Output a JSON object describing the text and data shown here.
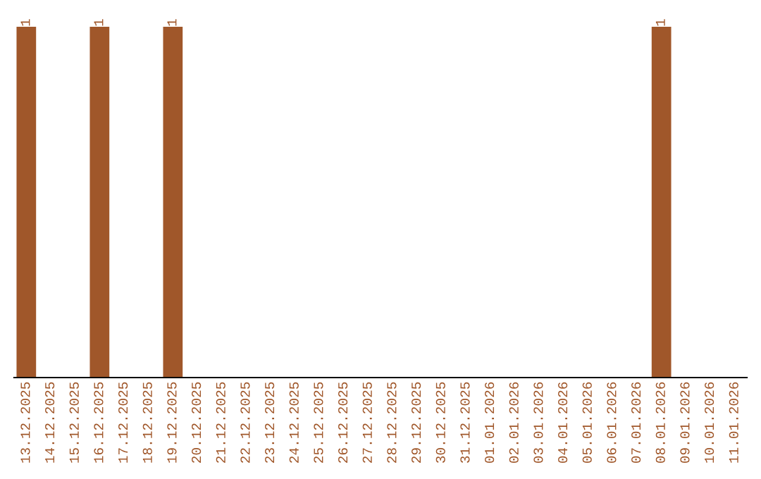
{
  "chart_data": {
    "type": "bar",
    "ylim": [
      0,
      1
    ],
    "categories": [
      "13.12.2025",
      "14.12.2025",
      "15.12.2025",
      "16.12.2025",
      "17.12.2025",
      "18.12.2025",
      "19.12.2025",
      "20.12.2025",
      "21.12.2025",
      "22.12.2025",
      "23.12.2025",
      "24.12.2025",
      "25.12.2025",
      "26.12.2025",
      "27.12.2025",
      "28.12.2025",
      "29.12.2025",
      "30.12.2025",
      "31.12.2025",
      "01.01.2026",
      "02.01.2026",
      "03.01.2026",
      "04.01.2026",
      "05.01.2026",
      "06.01.2026",
      "07.01.2026",
      "08.01.2026",
      "09.01.2026",
      "10.01.2026",
      "11.01.2026"
    ],
    "values": [
      1,
      0,
      0,
      1,
      0,
      0,
      1,
      0,
      0,
      0,
      0,
      0,
      0,
      0,
      0,
      0,
      0,
      0,
      0,
      0,
      0,
      0,
      0,
      0,
      0,
      0,
      1,
      0,
      0,
      0
    ],
    "value_labels": [
      "1",
      null,
      null,
      "1",
      null,
      null,
      "1",
      null,
      null,
      null,
      null,
      null,
      null,
      null,
      null,
      null,
      null,
      null,
      null,
      null,
      null,
      null,
      null,
      null,
      null,
      null,
      "1",
      null,
      null,
      null
    ],
    "color": "#a0572a",
    "grid": false,
    "legend": false
  }
}
